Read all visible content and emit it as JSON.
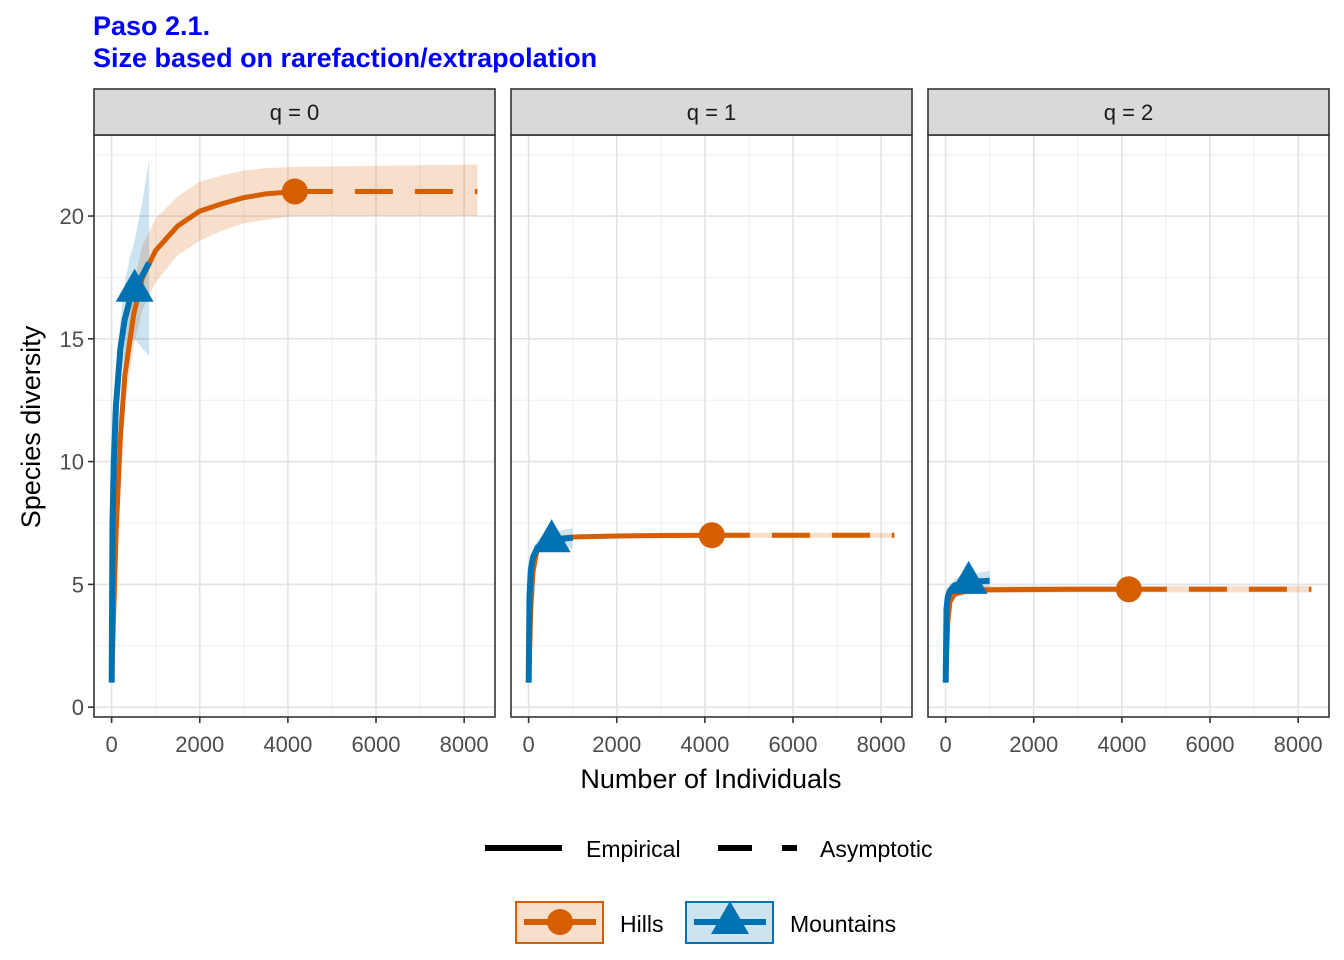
{
  "chart_data": {
    "type": "line",
    "title": "Paso 2.1.",
    "subtitle": "Size based on rarefaction/extrapolation",
    "xlabel": "Number of Individuals",
    "ylabel": "Species diversity",
    "xlim": [
      -400,
      8700
    ],
    "ylim": [
      -0.4,
      23.3
    ],
    "x_ticks": [
      0,
      2000,
      4000,
      6000,
      8000
    ],
    "y_ticks": [
      0,
      5,
      10,
      15,
      20
    ],
    "grid": true,
    "legend_position": "bottom",
    "linetype_legend": [
      "Empirical",
      "Asymptotic"
    ],
    "colors": {
      "Hills": "#D55E00",
      "Mountains": "#0072B2",
      "title": "#0000FF"
    },
    "series": [
      {
        "name": "Hills",
        "marker": "circle"
      },
      {
        "name": "Mountains",
        "marker": "triangle"
      }
    ],
    "panels": [
      {
        "label": "q = 0",
        "hills": {
          "observed": [
            4158,
            21
          ],
          "empirical_x": [
            1,
            50,
            100,
            200,
            300,
            500,
            700,
            1000,
            1500,
            2000,
            2500,
            3000,
            3500,
            4158
          ],
          "empirical_y": [
            1,
            4,
            7,
            11,
            13.5,
            16,
            17.5,
            18.6,
            19.6,
            20.2,
            20.5,
            20.75,
            20.9,
            21
          ],
          "empirical_lower": [
            1,
            3.5,
            6.3,
            10,
            12.3,
            14.7,
            16.2,
            17.3,
            18.4,
            19,
            19.4,
            19.7,
            19.85,
            20
          ],
          "empirical_upper": [
            1,
            4.5,
            7.7,
            12,
            14.7,
            17.3,
            18.8,
            19.9,
            20.8,
            21.4,
            21.65,
            21.85,
            21.95,
            22
          ],
          "asymptotic_x": [
            4158,
            8300
          ],
          "asymptotic_y": [
            21,
            21
          ],
          "asymptotic_lower": [
            20,
            20
          ],
          "asymptotic_upper": [
            22,
            22.1
          ]
        },
        "mountains": {
          "observed": [
            522,
            17
          ],
          "empirical_x": [
            1,
            20,
            50,
            100,
            200,
            300,
            400,
            522
          ],
          "empirical_y": [
            1,
            7.5,
            10,
            12.3,
            14.6,
            15.8,
            16.5,
            17
          ],
          "empirical_lower": [
            1,
            7,
            9.3,
            11.5,
            13.4,
            14.3,
            14.8,
            15
          ],
          "empirical_upper": [
            1,
            8,
            10.7,
            13.1,
            15.8,
            17.3,
            18.2,
            19
          ],
          "asymptotic_x": [
            522,
            700,
            850
          ],
          "asymptotic_y": [
            17,
            17.6,
            18.1
          ],
          "asymptotic_lower": [
            15,
            14.6,
            14.3
          ],
          "asymptotic_upper": [
            19,
            20.6,
            22.3
          ]
        }
      },
      {
        "label": "q = 1",
        "hills": {
          "observed": [
            4158,
            7
          ],
          "empirical_x": [
            1,
            50,
            100,
            200,
            500,
            1000,
            2000,
            3000,
            4158
          ],
          "empirical_y": [
            1,
            4,
            5.5,
            6.5,
            6.85,
            6.93,
            6.97,
            6.99,
            7
          ],
          "empirical_lower": [
            1,
            3.8,
            5.3,
            6.3,
            6.75,
            6.85,
            6.9,
            6.92,
            6.92
          ],
          "empirical_upper": [
            1,
            4.2,
            5.7,
            6.7,
            6.95,
            7.01,
            7.04,
            7.06,
            7.08
          ],
          "asymptotic_x": [
            4158,
            8300
          ],
          "asymptotic_y": [
            7,
            7
          ],
          "asymptotic_lower": [
            6.9,
            6.9
          ],
          "asymptotic_upper": [
            7.1,
            7.1
          ]
        },
        "mountains": {
          "observed": [
            522,
            6.8
          ],
          "empirical_x": [
            1,
            20,
            50,
            100,
            200,
            300,
            522
          ],
          "empirical_y": [
            1,
            4.5,
            5.6,
            6.1,
            6.5,
            6.65,
            6.8
          ],
          "empirical_lower": [
            1,
            4.3,
            5.3,
            5.8,
            6.2,
            6.35,
            6.5
          ],
          "empirical_upper": [
            1,
            4.7,
            5.9,
            6.4,
            6.8,
            6.95,
            7.1
          ],
          "asymptotic_x": [
            522,
            1000
          ],
          "asymptotic_y": [
            6.8,
            6.9
          ],
          "asymptotic_lower": [
            6.5,
            6.45
          ],
          "asymptotic_upper": [
            7.1,
            7.3
          ]
        }
      },
      {
        "label": "q = 2",
        "hills": {
          "observed": [
            4158,
            4.8
          ],
          "empirical_x": [
            1,
            50,
            100,
            200,
            500,
            1000,
            2000,
            3000,
            4158
          ],
          "empirical_y": [
            1,
            3.5,
            4.3,
            4.6,
            4.75,
            4.78,
            4.79,
            4.8,
            4.8
          ],
          "empirical_lower": [
            1,
            3.3,
            4.1,
            4.45,
            4.6,
            4.65,
            4.66,
            4.67,
            4.67
          ],
          "empirical_upper": [
            1,
            3.7,
            4.5,
            4.75,
            4.9,
            4.92,
            4.93,
            4.93,
            4.93
          ],
          "asymptotic_x": [
            4158,
            8300
          ],
          "asymptotic_y": [
            4.8,
            4.8
          ],
          "asymptotic_lower": [
            4.67,
            4.67
          ],
          "asymptotic_upper": [
            4.93,
            4.93
          ]
        },
        "mountains": {
          "observed": [
            522,
            5.1
          ],
          "empirical_x": [
            1,
            20,
            50,
            100,
            200,
            300,
            522
          ],
          "empirical_y": [
            1,
            4,
            4.5,
            4.75,
            4.95,
            5.02,
            5.1
          ],
          "empirical_lower": [
            1,
            3.8,
            4.3,
            4.5,
            4.65,
            4.72,
            4.8
          ],
          "empirical_upper": [
            1,
            4.2,
            4.7,
            5,
            5.2,
            5.3,
            5.4
          ],
          "asymptotic_x": [
            522,
            1000
          ],
          "asymptotic_y": [
            5.1,
            5.15
          ],
          "asymptotic_lower": [
            4.8,
            4.75
          ],
          "asymptotic_upper": [
            5.4,
            5.55
          ]
        }
      }
    ]
  }
}
